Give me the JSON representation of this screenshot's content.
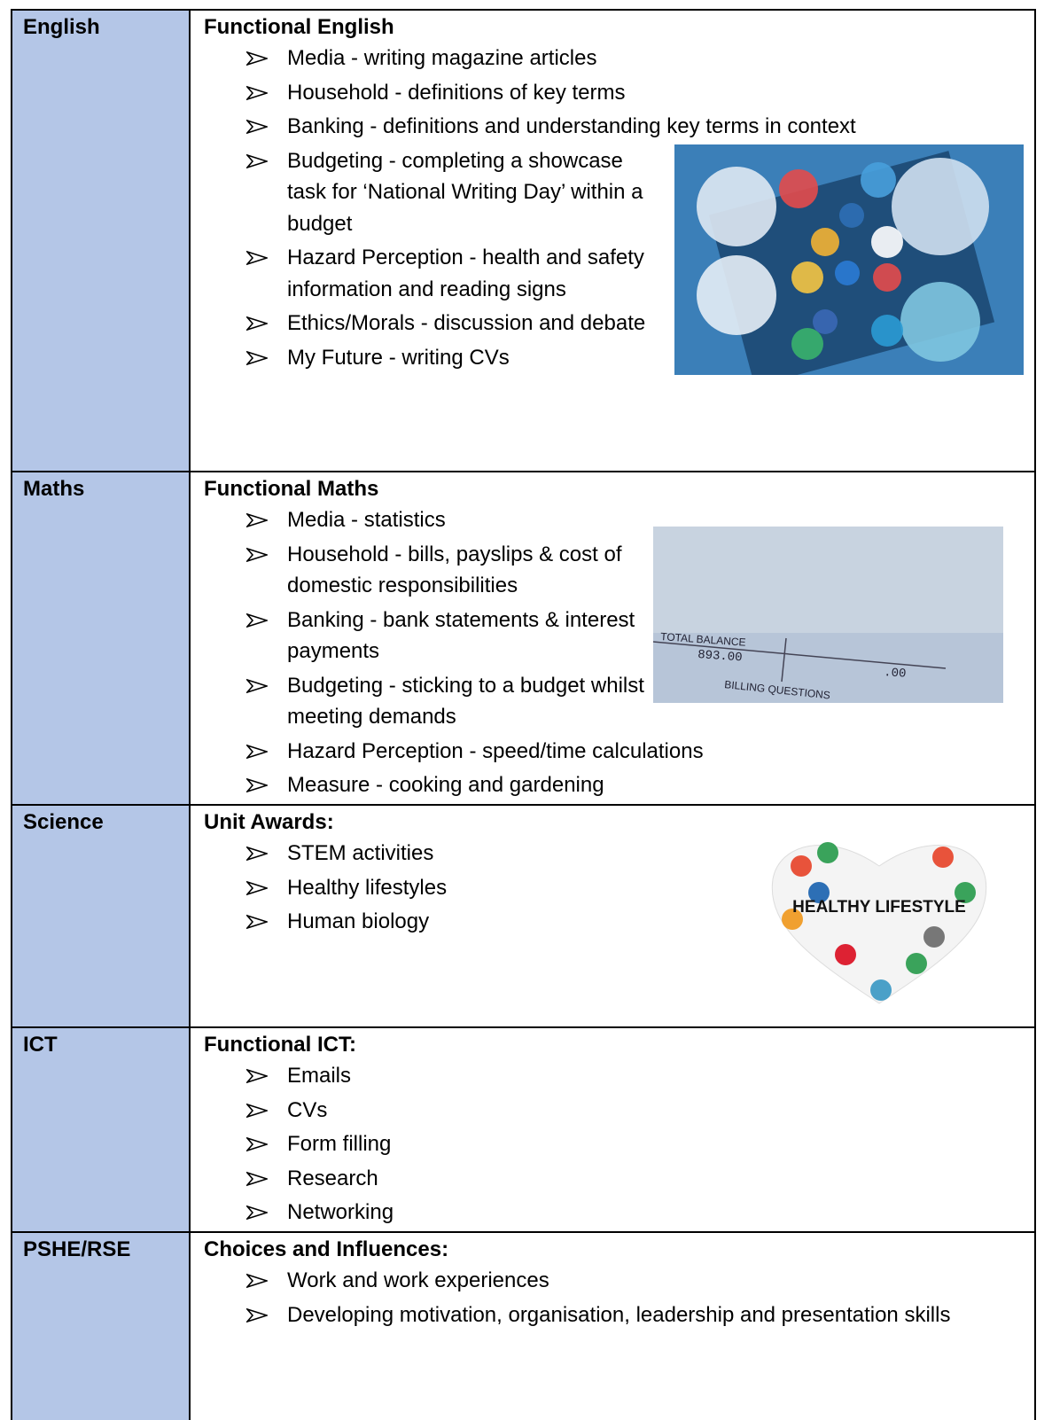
{
  "table": {
    "rows": [
      {
        "subject": "English",
        "heading": "Functional English",
        "items": [
          "Media - writing magazine articles",
          "Household - definitions of key terms",
          "Banking - definitions and understanding key terms in context",
          "Budgeting - completing a showcase task for ‘National Writing Day’ within a budget",
          "Hazard Perception - health and safety information and reading signs",
          "Ethics/Morals - discussion and debate",
          "My Future - writing CVs"
        ]
      },
      {
        "subject": "Maths",
        "heading": "Functional Maths",
        "items": [
          "Media - statistics",
          "Household - bills, payslips & cost of domestic responsibilities",
          "Banking - bank statements & interest payments",
          "Budgeting - sticking to a budget whilst meeting demands",
          "Hazard Perception - speed/time calculations",
          "Measure - cooking and gardening"
        ],
        "image_text": [
          "TOTAL BALANCE",
          "893.00",
          ".00",
          "BILLING QUESTIONS"
        ]
      },
      {
        "subject": "Science",
        "heading": "Unit Awards:",
        "items": [
          "STEM activities",
          "Healthy lifestyles",
          "Human biology"
        ],
        "image_text": [
          "HEALTHY LIFESTYLE"
        ]
      },
      {
        "subject": "ICT",
        "heading": "Functional ICT:",
        "items": [
          "Emails",
          "CVs",
          "Form filling",
          "Research",
          "Networking"
        ]
      },
      {
        "subject": "PSHE/RSE",
        "heading": "Choices and Influences:",
        "items": [
          "Work and work experiences",
          "Developing motivation, organisation, leadership and presentation skills"
        ]
      }
    ]
  }
}
